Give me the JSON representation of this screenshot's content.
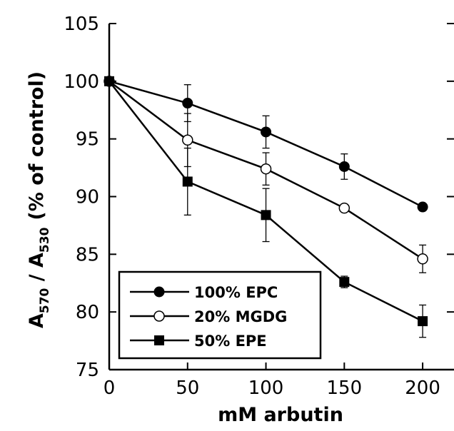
{
  "chart_data": {
    "type": "line",
    "x": [
      0,
      50,
      100,
      150,
      200
    ],
    "xlim": [
      0,
      220
    ],
    "ylim": [
      75,
      105
    ],
    "xticks": [
      0,
      50,
      100,
      150,
      200
    ],
    "yticks": [
      75,
      80,
      85,
      90,
      95,
      100,
      105
    ],
    "xlabel": "mM arbutin",
    "ylabel": {
      "main1": "A",
      "sub1": "570",
      "sep": " / A",
      "sub2": "530",
      "rest": "(% of control)"
    },
    "grid": false,
    "legend_position": "bottom-left",
    "series": [
      {
        "name": "100% EPC",
        "marker": "filled-circle",
        "color": "#000000",
        "values": [
          100,
          98.1,
          95.6,
          92.6,
          89.1
        ],
        "errors": [
          0,
          1.6,
          1.4,
          1.1,
          0
        ]
      },
      {
        "name": "20% MGDG",
        "marker": "open-circle",
        "color": "#000000",
        "values": [
          100,
          94.9,
          92.4,
          89.0,
          84.6
        ],
        "errors": [
          0,
          2.3,
          1.4,
          0,
          1.2
        ]
      },
      {
        "name": "50% EPE",
        "marker": "filled-square",
        "color": "#000000",
        "values": [
          100,
          91.3,
          88.4,
          82.6,
          79.2
        ],
        "errors": [
          0,
          2.9,
          2.3,
          0.5,
          1.4
        ]
      }
    ]
  }
}
